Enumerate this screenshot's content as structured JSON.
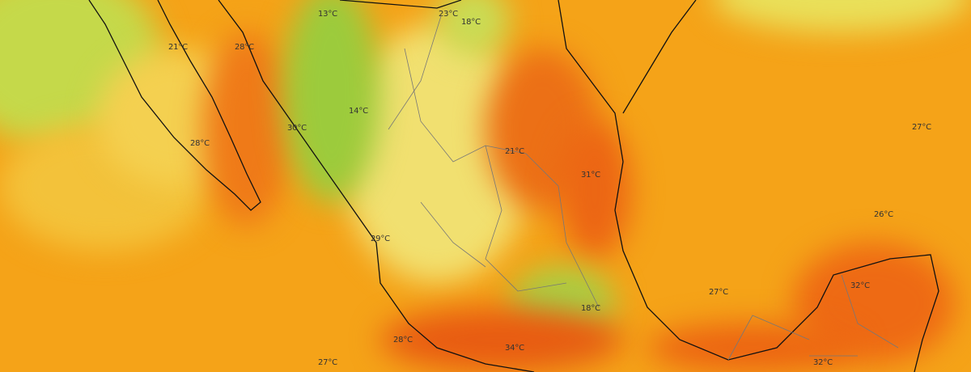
{
  "map": {
    "colors": {
      "cool": "#8cc63f",
      "mild": "#f2e46a",
      "warm": "#f5a318",
      "hot": "#ee6a12"
    },
    "labels": [
      {
        "text": "13°C"
      },
      {
        "text": "23°C"
      },
      {
        "text": "18°C"
      },
      {
        "text": "21°C"
      },
      {
        "text": "28°C"
      },
      {
        "text": "14°C"
      },
      {
        "text": "30°C"
      },
      {
        "text": "28°C"
      },
      {
        "text": "21°C"
      },
      {
        "text": "31°C"
      },
      {
        "text": "27°C"
      },
      {
        "text": "26°C"
      },
      {
        "text": "29°C"
      },
      {
        "text": "27°C"
      },
      {
        "text": "32°C"
      },
      {
        "text": "18°C"
      },
      {
        "text": "28°C"
      },
      {
        "text": "34°C"
      },
      {
        "text": "27°C"
      },
      {
        "text": "32°C"
      }
    ]
  }
}
